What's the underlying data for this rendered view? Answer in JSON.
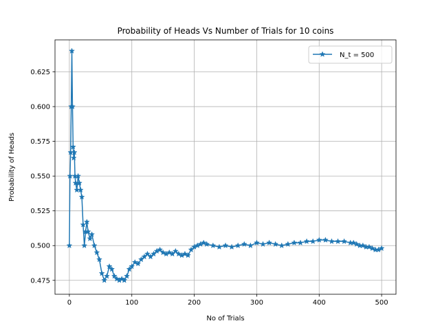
{
  "chart_data": {
    "type": "line",
    "title": "Probability of Heads Vs Number of Trials for 10 coins",
    "xlabel": "No of Trials",
    "ylabel": "Probability of Heads",
    "xlim": [
      -23,
      523
    ],
    "ylim": [
      0.465,
      0.648
    ],
    "x_ticks": [
      0,
      100,
      200,
      300,
      400,
      500
    ],
    "x_tick_labels": [
      "0",
      "100",
      "200",
      "300",
      "400",
      "500"
    ],
    "y_ticks": [
      0.475,
      0.5,
      0.525,
      0.55,
      0.575,
      0.6,
      0.625
    ],
    "y_tick_labels": [
      "0.475",
      "0.500",
      "0.525",
      "0.550",
      "0.575",
      "0.600",
      "0.625"
    ],
    "grid": true,
    "legend_position": "top-right",
    "marker": "star",
    "color": "#1f77b4",
    "series": [
      {
        "name": "N_t = 500",
        "x": [
          0,
          1,
          2,
          3,
          4,
          5,
          6,
          7,
          8,
          9,
          10,
          12,
          14,
          16,
          18,
          20,
          22,
          24,
          26,
          28,
          30,
          33,
          36,
          40,
          44,
          48,
          52,
          56,
          60,
          64,
          68,
          72,
          76,
          80,
          84,
          88,
          92,
          96,
          100,
          105,
          110,
          115,
          120,
          125,
          130,
          135,
          140,
          145,
          150,
          155,
          160,
          165,
          170,
          175,
          180,
          185,
          190,
          195,
          200,
          205,
          210,
          215,
          220,
          230,
          240,
          250,
          260,
          270,
          280,
          290,
          300,
          310,
          320,
          330,
          340,
          350,
          360,
          370,
          380,
          390,
          400,
          410,
          420,
          430,
          440,
          450,
          455,
          460,
          465,
          470,
          475,
          480,
          485,
          490,
          495,
          500
        ],
        "y": [
          0.5,
          0.55,
          0.567,
          0.6,
          0.64,
          0.6,
          0.571,
          0.563,
          0.567,
          0.55,
          0.545,
          0.54,
          0.55,
          0.545,
          0.54,
          0.535,
          0.515,
          0.5,
          0.51,
          0.517,
          0.51,
          0.505,
          0.508,
          0.5,
          0.495,
          0.49,
          0.48,
          0.475,
          0.478,
          0.485,
          0.483,
          0.478,
          0.476,
          0.475,
          0.476,
          0.475,
          0.478,
          0.483,
          0.485,
          0.488,
          0.487,
          0.49,
          0.492,
          0.494,
          0.492,
          0.494,
          0.496,
          0.497,
          0.495,
          0.494,
          0.495,
          0.494,
          0.496,
          0.494,
          0.493,
          0.494,
          0.493,
          0.497,
          0.499,
          0.5,
          0.501,
          0.502,
          0.501,
          0.5,
          0.499,
          0.5,
          0.499,
          0.5,
          0.501,
          0.5,
          0.502,
          0.501,
          0.502,
          0.501,
          0.5,
          0.501,
          0.502,
          0.502,
          0.503,
          0.503,
          0.504,
          0.504,
          0.503,
          0.503,
          0.503,
          0.502,
          0.502,
          0.501,
          0.5,
          0.5,
          0.499,
          0.499,
          0.498,
          0.497,
          0.497,
          0.498
        ]
      }
    ]
  }
}
